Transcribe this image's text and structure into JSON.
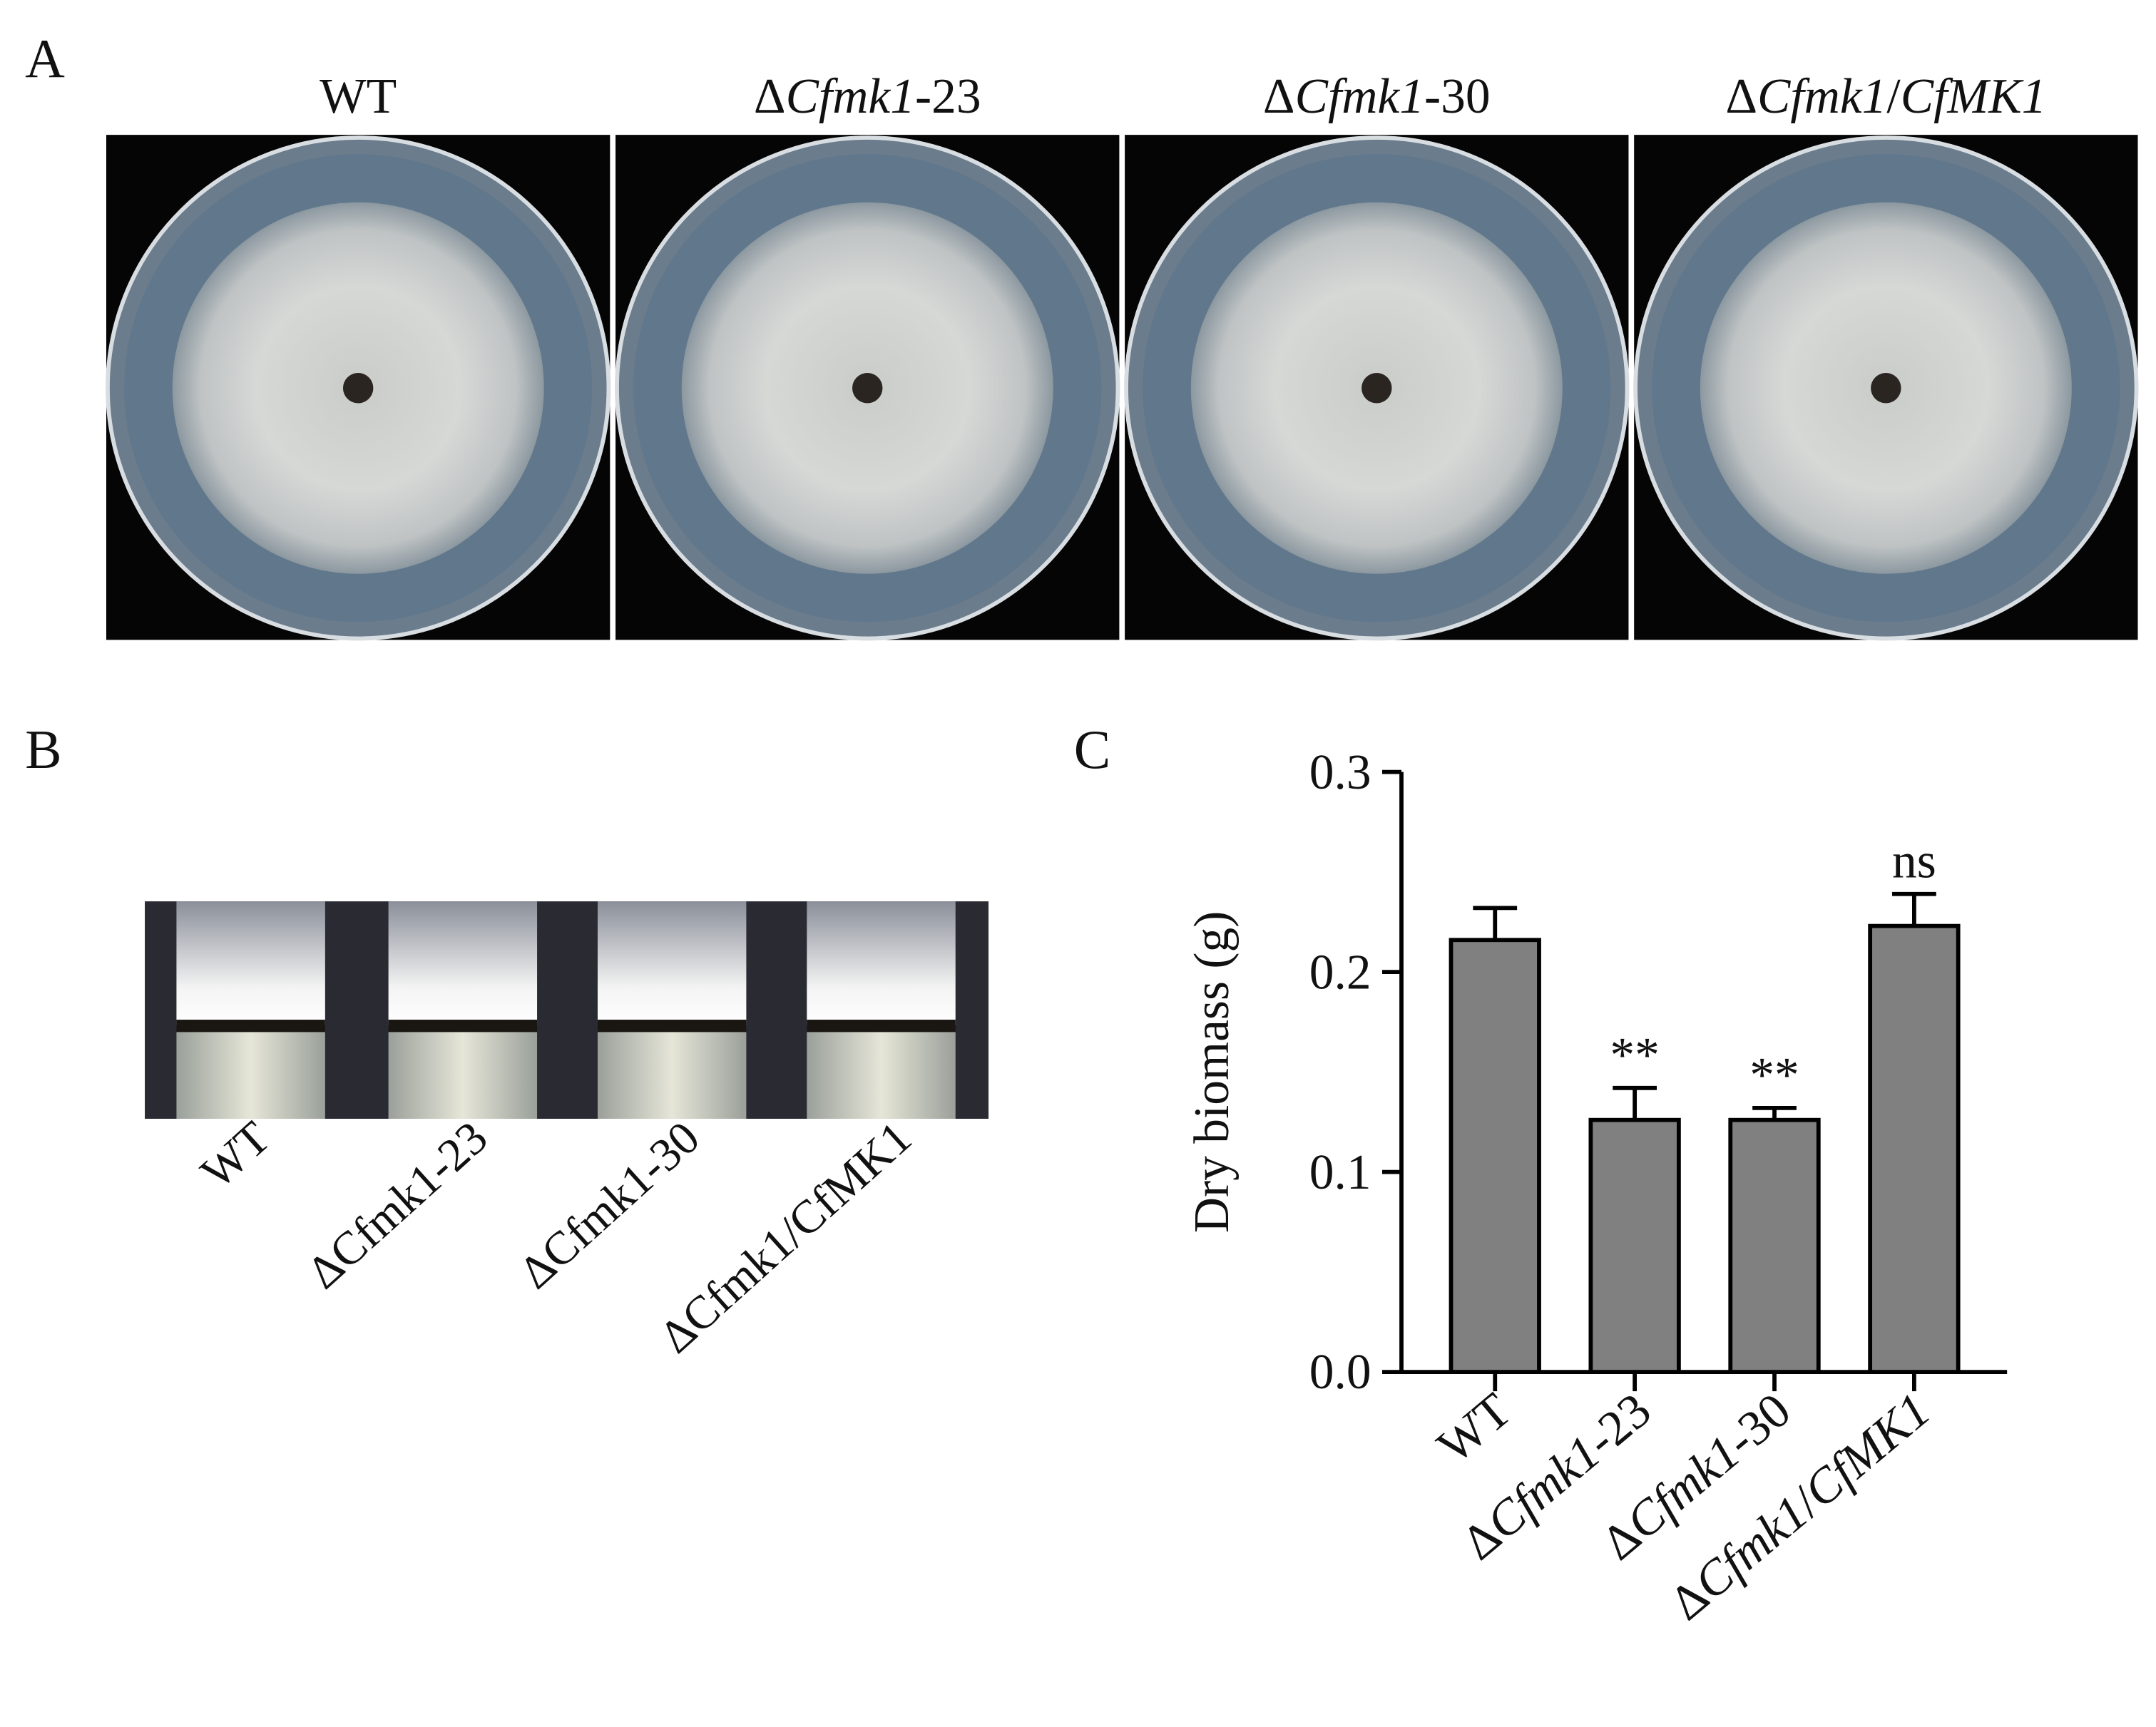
{
  "panel_a": {
    "label": "A",
    "titles": [
      "WT",
      "ΔCfmk1-23",
      "ΔCfmk1-30",
      "ΔCfmk1/CfMK1"
    ]
  },
  "panel_b": {
    "label": "B",
    "tube_labels": [
      "WT",
      "ΔCfmk1-23",
      "ΔCfmk1-30",
      "ΔCfmk1/CfMK1"
    ]
  },
  "chart_data": {
    "type": "bar",
    "panel_label": "C",
    "ylabel": "Dry biomass (g)",
    "categories": [
      "WT",
      "ΔCfmk1-23",
      "ΔCfmk1-30",
      "ΔCfmk1/CfMK1"
    ],
    "values": [
      0.216,
      0.126,
      0.126,
      0.223
    ],
    "errors": [
      0.016,
      0.016,
      0.006,
      0.016
    ],
    "significance": [
      null,
      "**",
      "**",
      "ns"
    ],
    "color": "#808080",
    "ylim": [
      0,
      0.3
    ],
    "yticks": [
      {
        "value": 0,
        "label": "0.0"
      },
      0.1,
      0.2,
      0.3
    ]
  }
}
